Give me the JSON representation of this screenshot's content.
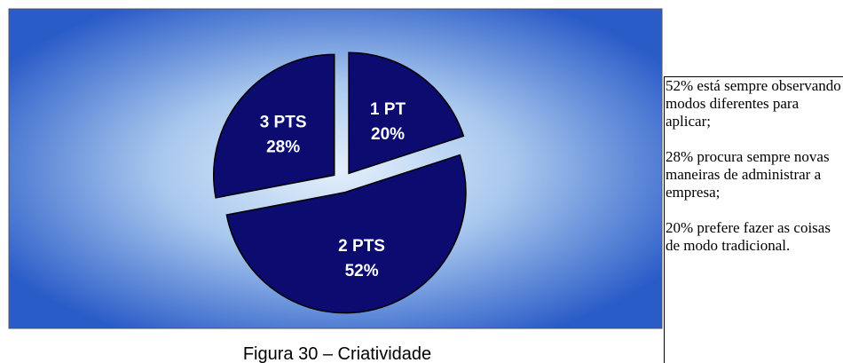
{
  "chart_data": {
    "type": "pie",
    "categories": [
      "1 PT",
      "2 PTS",
      "3 PTS"
    ],
    "values": [
      20,
      52,
      28
    ],
    "value_labels": [
      "20%",
      "52%",
      "28%"
    ],
    "color": "#0b0b70"
  },
  "caption": "Figura 30 – Criatividade",
  "side_text": [
    "52% está sempre observando modos diferentes para aplicar;",
    "28% procura sempre novas maneiras de administrar a empresa;",
    "20% prefere fazer as coisas de modo tradicional."
  ]
}
